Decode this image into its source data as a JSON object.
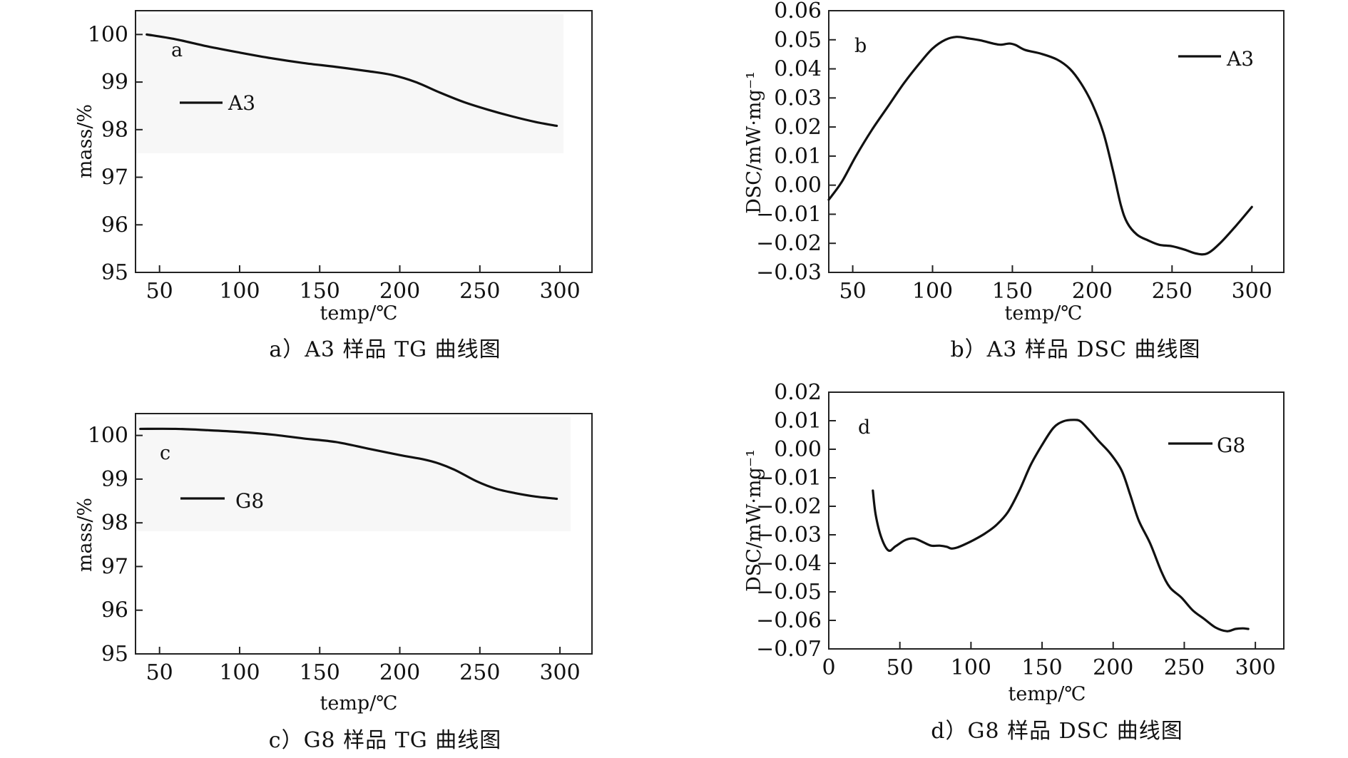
{
  "chart_data": [
    {
      "id": "a",
      "type": "line",
      "panel_tag": "a",
      "caption": "a）A3 样品 TG 曲线图",
      "xlabel": "temp/℃",
      "ylabel": "mass/%",
      "xlim": [
        35,
        320
      ],
      "ylim": [
        95,
        100.5
      ],
      "xticks": [
        50,
        100,
        150,
        200,
        250,
        300
      ],
      "xticklabels": [
        "50",
        "100",
        "150",
        "200",
        "250",
        "300"
      ],
      "yticks": [
        95,
        96,
        97,
        98,
        99,
        100
      ],
      "yticklabels": [
        "95",
        "96",
        "97",
        "98",
        "99",
        "100"
      ],
      "grid": false,
      "legend_position": "upper-left",
      "series": [
        {
          "name": "A3",
          "x": [
            42,
            60,
            80,
            100,
            120,
            140,
            160,
            180,
            195,
            210,
            225,
            240,
            255,
            270,
            285,
            298
          ],
          "y": [
            100.0,
            99.9,
            99.75,
            99.62,
            99.5,
            99.4,
            99.32,
            99.23,
            99.15,
            99.0,
            98.78,
            98.58,
            98.42,
            98.28,
            98.16,
            98.08
          ]
        }
      ]
    },
    {
      "id": "b",
      "type": "line",
      "panel_tag": "b",
      "caption": "b）A3 样品 DSC 曲线图",
      "xlabel": "temp/℃",
      "ylabel": "DSC/mW·mg⁻¹",
      "xlim": [
        35,
        320
      ],
      "ylim": [
        -0.03,
        0.06
      ],
      "xticks": [
        50,
        100,
        150,
        200,
        250,
        300
      ],
      "xticklabels": [
        "50",
        "100",
        "150",
        "200",
        "250",
        "300"
      ],
      "yticks": [
        -0.03,
        -0.02,
        -0.01,
        0.0,
        0.01,
        0.02,
        0.03,
        0.04,
        0.05,
        0.06
      ],
      "yticklabels": [
        "−0.03",
        "−0.02",
        "−0.01",
        "0.00",
        "0.01",
        "0.02",
        "0.03",
        "0.04",
        "0.05",
        "0.06"
      ],
      "grid": false,
      "legend_position": "upper-right",
      "series": [
        {
          "name": "A3",
          "x": [
            35,
            43,
            52,
            62,
            72,
            82,
            92,
            100,
            108,
            115,
            122,
            130,
            138,
            143,
            148,
            152,
            158,
            168,
            178,
            186,
            193,
            200,
            207,
            213,
            218,
            222,
            228,
            235,
            242,
            250,
            258,
            265,
            272,
            280,
            290,
            300
          ],
          "y": [
            -0.005,
            0.001,
            0.01,
            0.019,
            0.027,
            0.035,
            0.042,
            0.047,
            0.05,
            0.051,
            0.0505,
            0.0498,
            0.0487,
            0.0483,
            0.0487,
            0.0482,
            0.0465,
            0.0452,
            0.0432,
            0.04,
            0.035,
            0.028,
            0.018,
            0.005,
            -0.007,
            -0.013,
            -0.017,
            -0.019,
            -0.0205,
            -0.021,
            -0.0222,
            -0.0235,
            -0.0235,
            -0.02,
            -0.014,
            -0.0075
          ]
        }
      ]
    },
    {
      "id": "c",
      "type": "line",
      "panel_tag": "c",
      "caption": "c）G8 样品 TG 曲线图",
      "xlabel": "temp/℃",
      "ylabel": "mass/%",
      "xlim": [
        35,
        320
      ],
      "ylim": [
        95,
        100.5
      ],
      "xticks": [
        50,
        100,
        150,
        200,
        250,
        300
      ],
      "xticklabels": [
        "50",
        "100",
        "150",
        "200",
        "250",
        "300"
      ],
      "yticks": [
        95,
        96,
        97,
        98,
        99,
        100
      ],
      "yticklabels": [
        "95",
        "96",
        "97",
        "98",
        "99",
        "100"
      ],
      "grid": false,
      "legend_position": "upper-left",
      "series": [
        {
          "name": "G8",
          "x": [
            38,
            60,
            80,
            100,
            120,
            140,
            160,
            180,
            200,
            215,
            225,
            235,
            248,
            260,
            272,
            285,
            298
          ],
          "y": [
            100.15,
            100.15,
            100.12,
            100.08,
            100.02,
            99.93,
            99.85,
            99.7,
            99.55,
            99.45,
            99.35,
            99.2,
            98.95,
            98.78,
            98.68,
            98.6,
            98.55
          ]
        }
      ]
    },
    {
      "id": "d",
      "type": "line",
      "panel_tag": "d",
      "caption": "d）G8 样品 DSC 曲线图",
      "xlabel": "temp/℃",
      "ylabel": "DSC/mW·mg⁻¹",
      "xlim": [
        0,
        320
      ],
      "ylim": [
        -0.07,
        0.02
      ],
      "xticks": [
        0,
        50,
        100,
        150,
        200,
        250,
        300
      ],
      "xticklabels": [
        "0",
        "50",
        "100",
        "150",
        "200",
        "250",
        "300"
      ],
      "yticks": [
        -0.07,
        -0.06,
        -0.05,
        -0.04,
        -0.03,
        -0.02,
        -0.01,
        0.0,
        0.01,
        0.02
      ],
      "yticklabels": [
        "−0.07",
        "−0.06",
        "−0.05",
        "−0.04",
        "−0.03",
        "−0.02",
        "−0.01",
        "0.00",
        "0.01",
        "0.02"
      ],
      "grid": false,
      "legend_position": "upper-right",
      "series": [
        {
          "name": "G8",
          "x": [
            31,
            33,
            37,
            42,
            47,
            54,
            60,
            66,
            72,
            78,
            83,
            86,
            90,
            95,
            102,
            110,
            118,
            126,
            134,
            142,
            150,
            158,
            165,
            172,
            177,
            183,
            190,
            198,
            206,
            212,
            218,
            226,
            234,
            240,
            248,
            256,
            264,
            272,
            280,
            286,
            291,
            295
          ],
          "y": [
            -0.0145,
            -0.023,
            -0.031,
            -0.0355,
            -0.034,
            -0.0318,
            -0.0313,
            -0.0325,
            -0.0338,
            -0.0338,
            -0.0342,
            -0.0348,
            -0.0345,
            -0.0335,
            -0.0318,
            -0.0295,
            -0.0265,
            -0.022,
            -0.0145,
            -0.0055,
            0.0015,
            0.0075,
            0.0098,
            0.0103,
            0.0098,
            0.0068,
            0.0028,
            -0.0015,
            -0.0075,
            -0.016,
            -0.025,
            -0.033,
            -0.043,
            -0.0485,
            -0.052,
            -0.0565,
            -0.0595,
            -0.0625,
            -0.0638,
            -0.063,
            -0.0628,
            -0.063
          ]
        }
      ]
    }
  ]
}
